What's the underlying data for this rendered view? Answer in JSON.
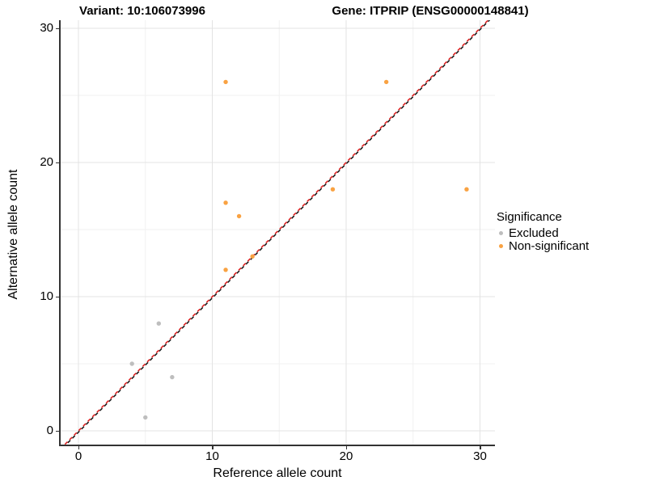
{
  "titles": {
    "variant": "Variant: 10:106073996",
    "gene": "Gene: ITPRIP (ENSG00000148841)"
  },
  "chart_data": {
    "type": "scatter",
    "title_left": "Variant: 10:106073996",
    "title_right": "Gene: ITPRIP (ENSG00000148841)",
    "xlabel": "Reference allele count",
    "ylabel": "Alternative allele count",
    "xlim": [
      -1.5,
      31.1
    ],
    "ylim": [
      -1.2,
      30.7
    ],
    "x_major_ticks": [
      0,
      10,
      20,
      30
    ],
    "y_major_ticks": [
      0,
      10,
      20,
      30
    ],
    "x_minor_gridlines": [
      5,
      15,
      25
    ],
    "y_minor_gridlines": [
      5,
      15,
      25
    ],
    "grid": true,
    "legend": {
      "title": "Significance",
      "position": "right"
    },
    "series": [
      {
        "name": "Excluded",
        "color": "#bebebe",
        "points": [
          [
            4,
            5
          ],
          [
            5,
            1
          ],
          [
            6,
            8
          ],
          [
            7,
            4
          ]
        ]
      },
      {
        "name": "Non-significant",
        "color": "#f9a242",
        "points": [
          [
            11,
            12
          ],
          [
            11,
            17
          ],
          [
            11,
            26
          ],
          [
            12,
            16
          ],
          [
            13,
            13
          ],
          [
            19,
            18
          ],
          [
            23,
            26
          ],
          [
            29,
            18
          ]
        ]
      }
    ],
    "reference_line": {
      "equation": "y = x",
      "style": "dashed",
      "colors": [
        "#dd2020",
        "#1a1a1a"
      ]
    }
  }
}
